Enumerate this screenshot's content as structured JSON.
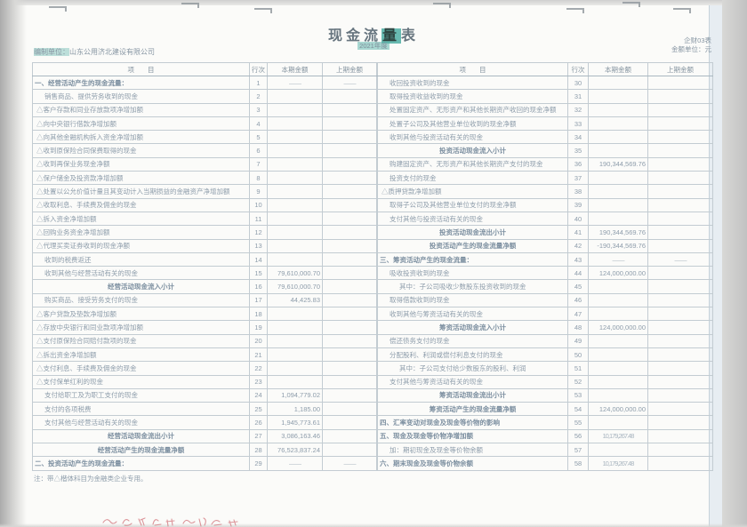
{
  "page": {
    "title": {
      "prefix": "现金流",
      "highlighted": "量",
      "suffix": "表"
    },
    "prepared_by_label": "编制单位：",
    "prepared_by_value": "山东公用济北建设有限公司",
    "period": "2021年度",
    "form_code": "企财03表",
    "unit_label": "金额单位：元",
    "footnote": "注：带△楷体科目为金融类企业专用。"
  },
  "colors": {
    "accent_teal": "#4eaea4",
    "ink_gray_blue": "#8e9dab",
    "table_border": "#c3ccd2",
    "handwriting_red": "#d06a72"
  },
  "table": {
    "columns": [
      "项　　目",
      "行次",
      "本期金额",
      "上期金额"
    ],
    "left_rows": [
      {
        "kind": "sec",
        "label": "一、经营活动产生的现金流量：",
        "line": "1",
        "current": "——",
        "prior": "——"
      },
      {
        "kind": "item1",
        "label": "销售商品、提供劳务收到的现金",
        "line": "2",
        "current": "",
        "prior": ""
      },
      {
        "kind": "item0",
        "label": "△客户存款和同业存放款项净增加额",
        "line": "3",
        "current": "",
        "prior": ""
      },
      {
        "kind": "item0",
        "label": "△向中央银行借款净增加额",
        "line": "4",
        "current": "",
        "prior": ""
      },
      {
        "kind": "item0",
        "label": "△向其他金融机构拆入资金净增加额",
        "line": "5",
        "current": "",
        "prior": ""
      },
      {
        "kind": "item0",
        "label": "△收到原保险合同保费取得的现金",
        "line": "6",
        "current": "",
        "prior": ""
      },
      {
        "kind": "item0",
        "label": "△收到再保业务现金净额",
        "line": "7",
        "current": "",
        "prior": ""
      },
      {
        "kind": "item0",
        "label": "△保户储金及投资款净增加额",
        "line": "8",
        "current": "",
        "prior": ""
      },
      {
        "kind": "item0",
        "label": "△处置以公允价值计量且其变动计入当期损益的金融资产净增加额",
        "line": "9",
        "current": "",
        "prior": ""
      },
      {
        "kind": "item0",
        "label": "△收取利息、手续费及佣金的现金",
        "line": "10",
        "current": "",
        "prior": ""
      },
      {
        "kind": "item0",
        "label": "△拆入资金净增加额",
        "line": "11",
        "current": "",
        "prior": ""
      },
      {
        "kind": "item0",
        "label": "△回购业务资金净增加额",
        "line": "12",
        "current": "",
        "prior": ""
      },
      {
        "kind": "item0",
        "label": "△代理买卖证券收到的现金净额",
        "line": "13",
        "current": "",
        "prior": ""
      },
      {
        "kind": "item1",
        "label": "收到的税费返还",
        "line": "14",
        "current": "",
        "prior": ""
      },
      {
        "kind": "item1",
        "label": "收到其他与经营活动有关的现金",
        "line": "15",
        "current": "79,610,000.70",
        "prior": ""
      },
      {
        "kind": "sub",
        "label": "经营活动现金流入小计",
        "line": "16",
        "current": "79,610,000.70",
        "prior": ""
      },
      {
        "kind": "item1",
        "label": "购买商品、接受劳务支付的现金",
        "line": "17",
        "current": "44,425.83",
        "prior": ""
      },
      {
        "kind": "item0",
        "label": "△客户贷款及垫款净增加额",
        "line": "18",
        "current": "",
        "prior": ""
      },
      {
        "kind": "item0",
        "label": "△存放中央银行和同业款项净增加额",
        "line": "19",
        "current": "",
        "prior": ""
      },
      {
        "kind": "item0",
        "label": "△支付原保险合同赔付款项的现金",
        "line": "20",
        "current": "",
        "prior": ""
      },
      {
        "kind": "item0",
        "label": "△拆出资金净增加额",
        "line": "21",
        "current": "",
        "prior": ""
      },
      {
        "kind": "item0",
        "label": "△支付利息、手续费及佣金的现金",
        "line": "22",
        "current": "",
        "prior": ""
      },
      {
        "kind": "item0",
        "label": "△支付保单红利的现金",
        "line": "23",
        "current": "",
        "prior": ""
      },
      {
        "kind": "item1",
        "label": "支付给职工及为职工支付的现金",
        "line": "24",
        "current": "1,094,779.02",
        "prior": ""
      },
      {
        "kind": "item1",
        "label": "支付的各项税费",
        "line": "25",
        "current": "1,185.00",
        "prior": ""
      },
      {
        "kind": "item1",
        "label": "支付其他与经营活动有关的现金",
        "line": "26",
        "current": "1,945,773.61",
        "prior": ""
      },
      {
        "kind": "sub",
        "label": "经营活动现金流出小计",
        "line": "27",
        "current": "3,086,163.46",
        "prior": ""
      },
      {
        "kind": "sub",
        "label": "经营活动产生的现金流量净额",
        "line": "28",
        "current": "76,523,837.24",
        "prior": ""
      },
      {
        "kind": "sec",
        "label": "二、投资活动产生的现金流量：",
        "line": "29",
        "current": "——",
        "prior": "——"
      }
    ],
    "right_rows": [
      {
        "kind": "item1",
        "label": "收回投资收到的现金",
        "line": "30",
        "current": "",
        "prior": ""
      },
      {
        "kind": "item1",
        "label": "取得投资收益收到的现金",
        "line": "31",
        "current": "",
        "prior": ""
      },
      {
        "kind": "item1",
        "label": "处置固定资产、无形资产和其他长期资产收回的现金净额",
        "line": "32",
        "current": "",
        "prior": ""
      },
      {
        "kind": "item1",
        "label": "处置子公司及其他营业单位收到的现金净额",
        "line": "33",
        "current": "",
        "prior": ""
      },
      {
        "kind": "item1",
        "label": "收到其他与投资活动有关的现金",
        "line": "34",
        "current": "",
        "prior": ""
      },
      {
        "kind": "sub",
        "label": "投资活动现金流入小计",
        "line": "35",
        "current": "",
        "prior": ""
      },
      {
        "kind": "item1",
        "label": "购建固定资产、无形资产和其他长期资产支付的现金",
        "line": "36",
        "current": "190,344,569.76",
        "prior": ""
      },
      {
        "kind": "item1",
        "label": "投资支付的现金",
        "line": "37",
        "current": "",
        "prior": ""
      },
      {
        "kind": "item0",
        "label": "△质押贷款净增加额",
        "line": "38",
        "current": "",
        "prior": ""
      },
      {
        "kind": "item1",
        "label": "取得子公司及其他营业单位支付的现金净额",
        "line": "39",
        "current": "",
        "prior": ""
      },
      {
        "kind": "item1",
        "label": "支付其他与投资活动有关的现金",
        "line": "40",
        "current": "",
        "prior": ""
      },
      {
        "kind": "sub",
        "label": "投资活动现金流出小计",
        "line": "41",
        "current": "190,344,569.76",
        "prior": ""
      },
      {
        "kind": "sub",
        "label": "投资活动产生的现金流量净额",
        "line": "42",
        "current": "-190,344,569.76",
        "prior": ""
      },
      {
        "kind": "sec",
        "label": "三、筹资活动产生的现金流量：",
        "line": "43",
        "current": "——",
        "prior": "——"
      },
      {
        "kind": "item1",
        "label": "吸收投资收到的现金",
        "line": "44",
        "current": "124,000,000.00",
        "prior": ""
      },
      {
        "kind": "item2",
        "label": "其中：子公司吸收少数股东投资收到的现金",
        "line": "45",
        "current": "",
        "prior": ""
      },
      {
        "kind": "item1",
        "label": "取得借款收到的现金",
        "line": "46",
        "current": "",
        "prior": ""
      },
      {
        "kind": "item1",
        "label": "收到其他与筹资活动有关的现金",
        "line": "47",
        "current": "",
        "prior": ""
      },
      {
        "kind": "sub",
        "label": "筹资活动现金流入小计",
        "line": "48",
        "current": "124,000,000.00",
        "prior": ""
      },
      {
        "kind": "item1",
        "label": "偿还债务支付的现金",
        "line": "49",
        "current": "",
        "prior": ""
      },
      {
        "kind": "item1",
        "label": "分配股利、利润或偿付利息支付的现金",
        "line": "50",
        "current": "",
        "prior": ""
      },
      {
        "kind": "item2",
        "label": "其中：子公司支付给少数股东的股利、利润",
        "line": "51",
        "current": "",
        "prior": ""
      },
      {
        "kind": "item1",
        "label": "支付其他与筹资活动有关的现金",
        "line": "52",
        "current": "",
        "prior": ""
      },
      {
        "kind": "sub",
        "label": "筹资活动现金流出小计",
        "line": "53",
        "current": "",
        "prior": ""
      },
      {
        "kind": "sub",
        "label": "筹资活动产生的现金流量净额",
        "line": "54",
        "current": "124,000,000.00",
        "prior": ""
      },
      {
        "kind": "sec",
        "label": "四、汇率变动对现金及现金等价物的影响",
        "line": "55",
        "current": "",
        "prior": ""
      },
      {
        "kind": "sec",
        "label": "五、现金及现金等价物净增加额",
        "line": "56",
        "current": "10,179,267.48",
        "prior": ""
      },
      {
        "kind": "item1",
        "label": "加：期初现金及现金等价物余额",
        "line": "57",
        "current": "",
        "prior": ""
      },
      {
        "kind": "sec",
        "label": "六、期末现金及现金等价物余额",
        "line": "58",
        "current": "10,179,267.48",
        "prior": ""
      }
    ]
  }
}
